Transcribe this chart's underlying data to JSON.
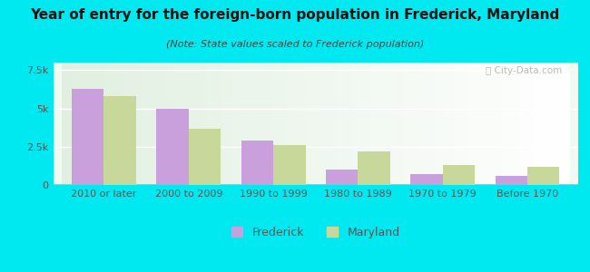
{
  "title": "Year of entry for the foreign-born population in Frederick, Maryland",
  "subtitle": "(Note: State values scaled to Frederick population)",
  "categories": [
    "2010 or later",
    "2000 to 2009",
    "1990 to 1999",
    "1980 to 1989",
    "1970 to 1979",
    "Before 1970"
  ],
  "frederick_values": [
    6300,
    5000,
    2900,
    1000,
    700,
    600
  ],
  "maryland_values": [
    5800,
    3700,
    2600,
    2200,
    1300,
    1200
  ],
  "frederick_color": "#c9a0dc",
  "maryland_color": "#c8d89a",
  "background_outer": "#00e8f0",
  "ylim": [
    0,
    8000
  ],
  "yticks": [
    0,
    2500,
    5000,
    7500
  ],
  "ytick_labels": [
    "0",
    "2.5k",
    "5k",
    "7.5k"
  ],
  "bar_width": 0.38,
  "legend_labels": [
    "Frederick",
    "Maryland"
  ],
  "title_fontsize": 11,
  "subtitle_fontsize": 8,
  "tick_fontsize": 8,
  "legend_fontsize": 9,
  "title_color": "#111111",
  "subtitle_color": "#444444",
  "tick_color": "#555555"
}
